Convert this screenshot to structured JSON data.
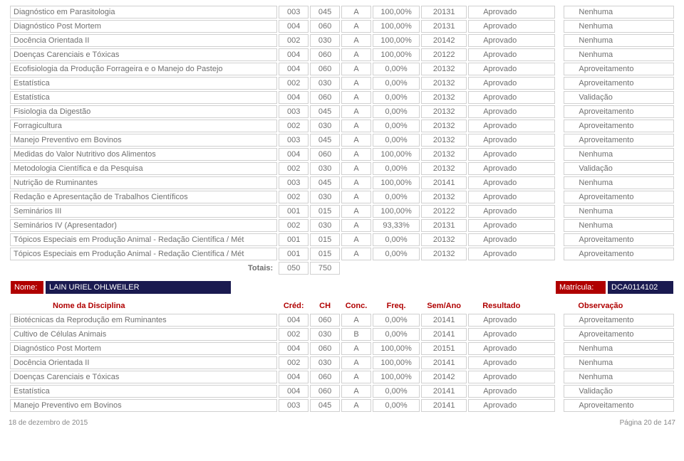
{
  "colors": {
    "red": "#b00000",
    "navy": "#1a1a50",
    "border": "#d0d0d0",
    "text": "#707070"
  },
  "headers": {
    "disc": "Nome da Disciplina",
    "cred": "Créd:",
    "ch": "CH",
    "conc": "Conc.",
    "freq": "Freq.",
    "sem": "Sem/Ano",
    "res": "Resultado",
    "obs": "Observação"
  },
  "totais_label": "Totais:",
  "totais": {
    "a": "050",
    "b": "750"
  },
  "name_bar": {
    "nome_lbl": "Nome:",
    "nome_val": "LAIN URIEL OHLWEILER",
    "mat_lbl": "Matrícula:",
    "mat_val": "DCA0114102"
  },
  "rows1": [
    {
      "d": "Diagnóstico em Parasitologia",
      "c": "003",
      "h": "045",
      "k": "A",
      "f": "100,00%",
      "s": "20131",
      "r": "Aprovado",
      "o": "Nenhuma"
    },
    {
      "d": "Diagnóstico Post Mortem",
      "c": "004",
      "h": "060",
      "k": "A",
      "f": "100,00%",
      "s": "20131",
      "r": "Aprovado",
      "o": "Nenhuma"
    },
    {
      "d": "Docência Orientada II",
      "c": "002",
      "h": "030",
      "k": "A",
      "f": "100,00%",
      "s": "20142",
      "r": "Aprovado",
      "o": "Nenhuma"
    },
    {
      "d": "Doenças Carenciais e Tóxicas",
      "c": "004",
      "h": "060",
      "k": "A",
      "f": "100,00%",
      "s": "20122",
      "r": "Aprovado",
      "o": "Nenhuma"
    },
    {
      "d": "Ecofisiologia da Produção Forrageira e o Manejo do Pastejo",
      "c": "004",
      "h": "060",
      "k": "A",
      "f": "0,00%",
      "s": "20132",
      "r": "Aprovado",
      "o": "Aproveitamento"
    },
    {
      "d": "Estatística",
      "c": "002",
      "h": "030",
      "k": "A",
      "f": "0,00%",
      "s": "20132",
      "r": "Aprovado",
      "o": "Aproveitamento"
    },
    {
      "d": "Estatística",
      "c": "004",
      "h": "060",
      "k": "A",
      "f": "0,00%",
      "s": "20132",
      "r": "Aprovado",
      "o": "Validação"
    },
    {
      "d": "Fisiologia da Digestão",
      "c": "003",
      "h": "045",
      "k": "A",
      "f": "0,00%",
      "s": "20132",
      "r": "Aprovado",
      "o": "Aproveitamento"
    },
    {
      "d": "Forragicultura",
      "c": "002",
      "h": "030",
      "k": "A",
      "f": "0,00%",
      "s": "20132",
      "r": "Aprovado",
      "o": "Aproveitamento"
    },
    {
      "d": "Manejo Preventivo em Bovinos",
      "c": "003",
      "h": "045",
      "k": "A",
      "f": "0,00%",
      "s": "20132",
      "r": "Aprovado",
      "o": "Aproveitamento"
    },
    {
      "d": "Medidas do Valor Nutritivo dos Alimentos",
      "c": "004",
      "h": "060",
      "k": "A",
      "f": "100,00%",
      "s": "20132",
      "r": "Aprovado",
      "o": "Nenhuma"
    },
    {
      "d": "Metodologia Científica e da Pesquisa",
      "c": "002",
      "h": "030",
      "k": "A",
      "f": "0,00%",
      "s": "20132",
      "r": "Aprovado",
      "o": "Validação"
    },
    {
      "d": "Nutrição de Ruminantes",
      "c": "003",
      "h": "045",
      "k": "A",
      "f": "100,00%",
      "s": "20141",
      "r": "Aprovado",
      "o": "Nenhuma"
    },
    {
      "d": "Redação e Apresentação de Trabalhos Científicos",
      "c": "002",
      "h": "030",
      "k": "A",
      "f": "0,00%",
      "s": "20132",
      "r": "Aprovado",
      "o": "Aproveitamento"
    },
    {
      "d": "Seminários III",
      "c": "001",
      "h": "015",
      "k": "A",
      "f": "100,00%",
      "s": "20122",
      "r": "Aprovado",
      "o": "Nenhuma"
    },
    {
      "d": "Seminários IV (Apresentador)",
      "c": "002",
      "h": "030",
      "k": "A",
      "f": "93,33%",
      "s": "20131",
      "r": "Aprovado",
      "o": "Nenhuma"
    },
    {
      "d": "Tópicos Especiais em Produção Animal - Redação Científica / Mét",
      "c": "001",
      "h": "015",
      "k": "A",
      "f": "0,00%",
      "s": "20132",
      "r": "Aprovado",
      "o": "Aproveitamento"
    },
    {
      "d": "Tópicos Especiais em Produção Animal - Redação Científica / Mét",
      "c": "001",
      "h": "015",
      "k": "A",
      "f": "0,00%",
      "s": "20132",
      "r": "Aprovado",
      "o": "Aproveitamento"
    }
  ],
  "rows2": [
    {
      "d": "Biotécnicas da Reprodução em Ruminantes",
      "c": "004",
      "h": "060",
      "k": "A",
      "f": "0,00%",
      "s": "20141",
      "r": "Aprovado",
      "o": "Aproveitamento"
    },
    {
      "d": "Cultivo de Células Animais",
      "c": "002",
      "h": "030",
      "k": "B",
      "f": "0,00%",
      "s": "20141",
      "r": "Aprovado",
      "o": "Aproveitamento"
    },
    {
      "d": "Diagnóstico Post Mortem",
      "c": "004",
      "h": "060",
      "k": "A",
      "f": "100,00%",
      "s": "20151",
      "r": "Aprovado",
      "o": "Nenhuma"
    },
    {
      "d": "Docência Orientada II",
      "c": "002",
      "h": "030",
      "k": "A",
      "f": "100,00%",
      "s": "20141",
      "r": "Aprovado",
      "o": "Nenhuma"
    },
    {
      "d": "Doenças Carenciais e Tóxicas",
      "c": "004",
      "h": "060",
      "k": "A",
      "f": "100,00%",
      "s": "20142",
      "r": "Aprovado",
      "o": "Nenhuma"
    },
    {
      "d": "Estatística",
      "c": "004",
      "h": "060",
      "k": "A",
      "f": "0,00%",
      "s": "20141",
      "r": "Aprovado",
      "o": "Validação"
    },
    {
      "d": "Manejo Preventivo em Bovinos",
      "c": "003",
      "h": "045",
      "k": "A",
      "f": "0,00%",
      "s": "20141",
      "r": "Aprovado",
      "o": "Aproveitamento"
    }
  ],
  "footer": {
    "left": "18 de dezembro de 2015",
    "right": "Página 20 de 147"
  }
}
